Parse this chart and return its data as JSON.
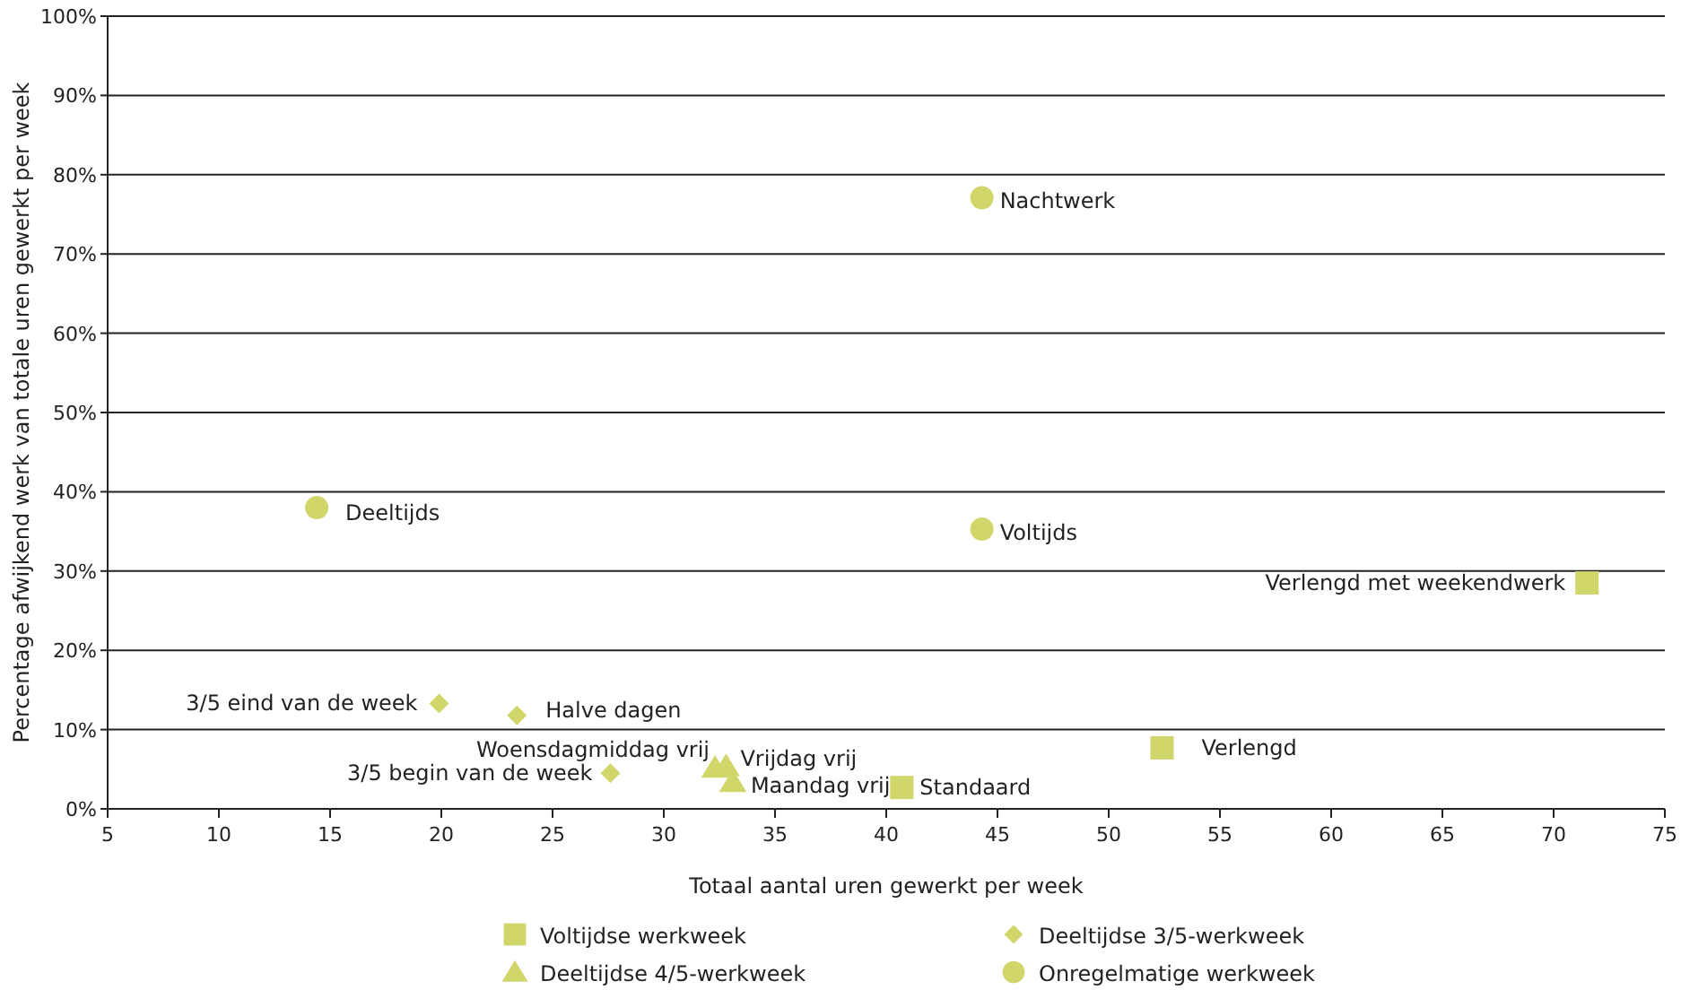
{
  "chart_data": {
    "type": "scatter",
    "xlabel": "Totaal aantal uren gewerkt per week",
    "ylabel": "Percentage afwijkend werk van totale uren gewerkt per week",
    "xlim": [
      5,
      75
    ],
    "xticks": [
      5,
      10,
      15,
      20,
      25,
      30,
      35,
      40,
      45,
      50,
      55,
      60,
      65,
      70,
      75
    ],
    "ylim": [
      0,
      100
    ],
    "yticks": [
      {
        "value": 0,
        "label": "0%"
      },
      {
        "value": 10,
        "label": "10%"
      },
      {
        "value": 20,
        "label": "20%"
      },
      {
        "value": 30,
        "label": "30%"
      },
      {
        "value": 40,
        "label": "40%"
      },
      {
        "value": 50,
        "label": "50%"
      },
      {
        "value": 60,
        "label": "60%"
      },
      {
        "value": 70,
        "label": "70%"
      },
      {
        "value": 80,
        "label": "80%"
      },
      {
        "value": 90,
        "label": "90%"
      },
      {
        "value": 100,
        "label": "100%"
      }
    ],
    "grid": "y",
    "legend": "bottom",
    "series": [
      {
        "name": "Voltijdse werkweek",
        "color": "#d1d66a",
        "marker": "square",
        "x": [
          40.7,
          52.4,
          71.5
        ],
        "values": [
          2.7,
          7.7,
          28.5
        ]
      },
      {
        "name": "Deeltijdse 3/5-werkweek",
        "color": "#d1d66a",
        "marker": "diamond",
        "x": [
          19.9,
          23.4,
          27.6
        ],
        "values": [
          13.3,
          11.8,
          4.5
        ]
      },
      {
        "name": "Deeltijdse 4/5-werkweek",
        "color": "#d1d66a",
        "marker": "triangle",
        "x": [
          32.3,
          32.8,
          33.1
        ],
        "values": [
          5.2,
          5.4,
          3.4
        ]
      },
      {
        "name": "Onregelmatige werkweek",
        "color": "#d1d66a",
        "marker": "circle",
        "x": [
          14.4,
          44.3,
          44.3
        ],
        "values": [
          38.0,
          35.3,
          77.1
        ]
      }
    ],
    "annotations": [
      {
        "text": "Standaard",
        "x": 40.7,
        "y": 2.7
      },
      {
        "text": "Verlengd",
        "x": 52.4,
        "y": 7.7
      },
      {
        "text": "Verlengd met weekendwerk",
        "x": 71.5,
        "y": 28.5
      },
      {
        "text": "3/5 eind van de week",
        "x": 19.9,
        "y": 13.3
      },
      {
        "text": "Halve dagen",
        "x": 23.4,
        "y": 11.8
      },
      {
        "text": "3/5 begin van de week",
        "x": 27.6,
        "y": 4.5
      },
      {
        "text": "Woensdagmiddag vrij",
        "x": 32.3,
        "y": 5.2
      },
      {
        "text": "Vrijdag vrij",
        "x": 32.8,
        "y": 5.4
      },
      {
        "text": "Maandag vrij",
        "x": 33.1,
        "y": 3.4
      },
      {
        "text": "Deeltijds",
        "x": 14.4,
        "y": 38.0
      },
      {
        "text": "Voltijds",
        "x": 44.3,
        "y": 35.3
      },
      {
        "text": "Nachtwerk",
        "x": 44.3,
        "y": 77.1
      }
    ]
  }
}
